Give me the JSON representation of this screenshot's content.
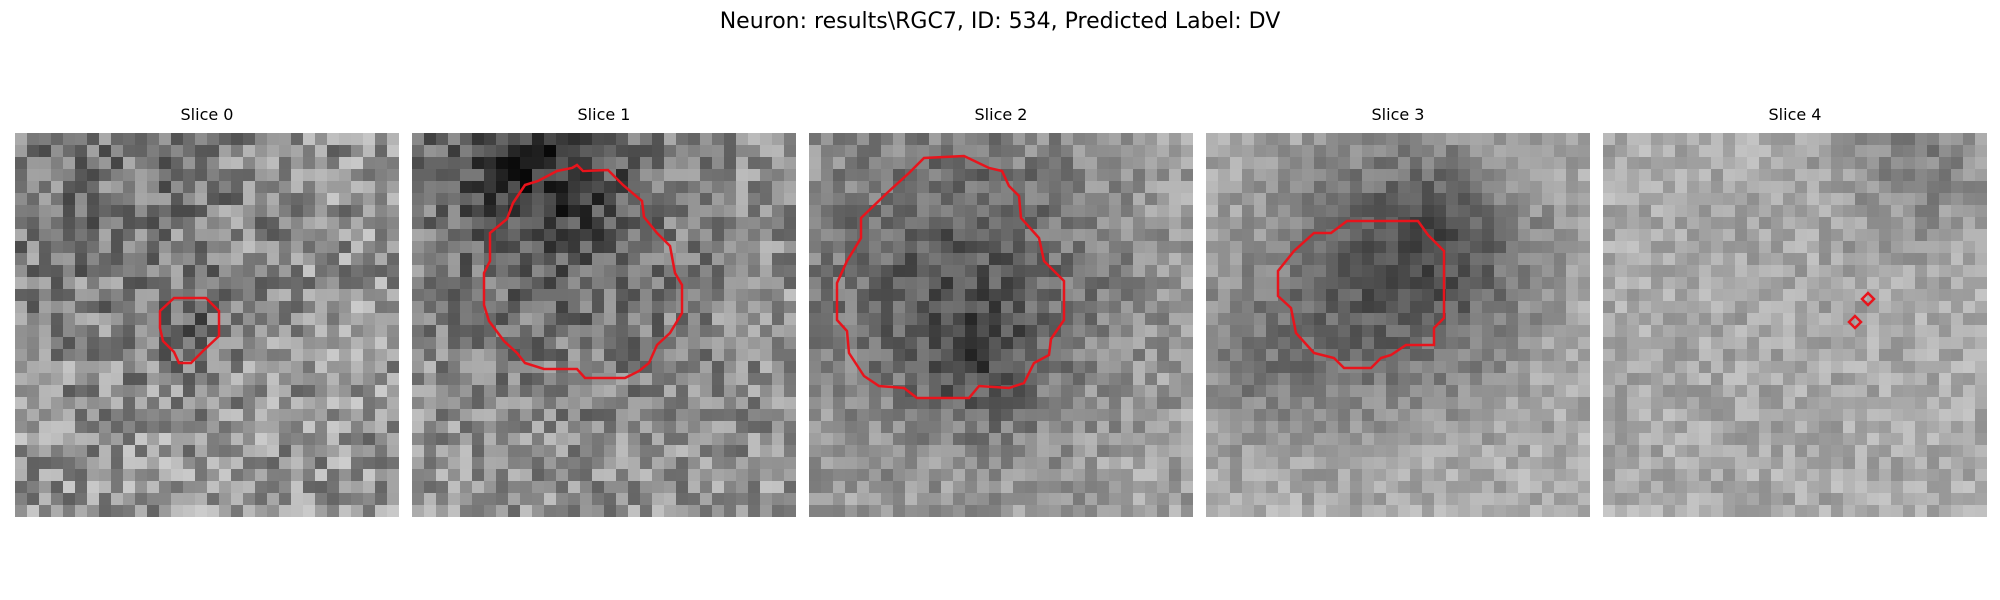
{
  "figure": {
    "title": "Neuron: results\\RGC7, ID: 534, Predicted Label: DV"
  },
  "slices": [
    {
      "title": "Slice 0"
    },
    {
      "title": "Slice 1"
    },
    {
      "title": "Slice 2"
    },
    {
      "title": "Slice 3"
    },
    {
      "title": "Slice 4"
    }
  ],
  "colors": {
    "contour": "#e8141c"
  }
}
